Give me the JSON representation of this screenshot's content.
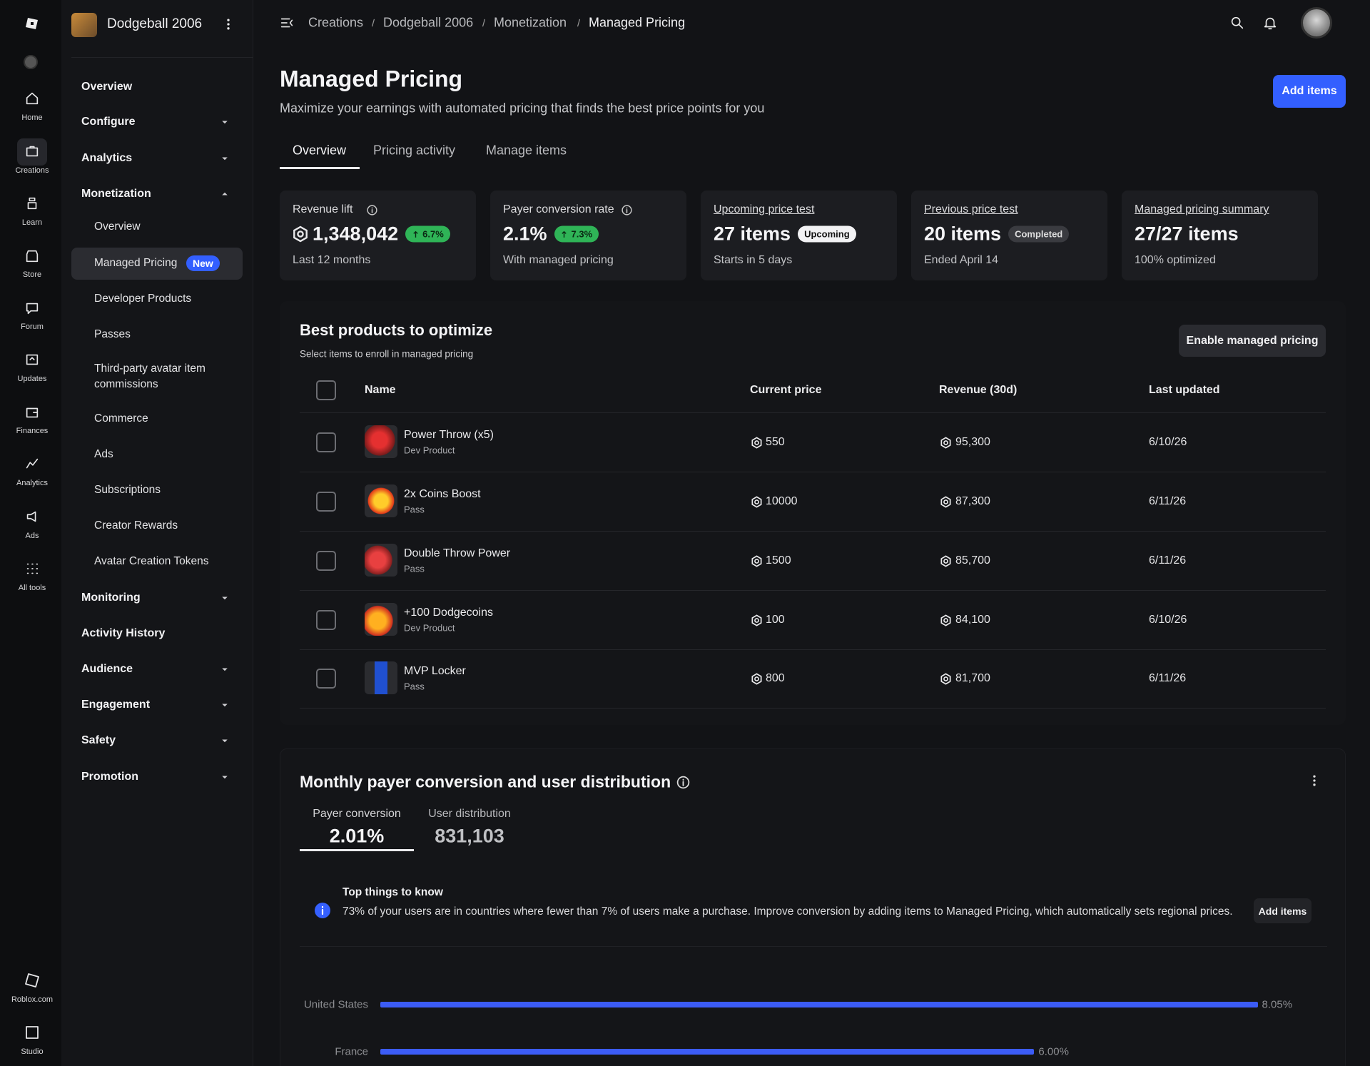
{
  "rail": [
    "Home",
    "Creations",
    "Learn",
    "Store",
    "Forum",
    "Updates",
    "Finances",
    "Analytics",
    "Ads",
    "All tools",
    "Roblox.com",
    "Studio"
  ],
  "sidebar": {
    "experience": "Dodgeball 2006",
    "items": [
      "Overview",
      "Configure",
      "Analytics",
      "Monetization",
      "Overview",
      "Managed Pricing",
      "Developer Products",
      "Passes",
      "Third-party avatar item commissions",
      "Commerce",
      "Ads",
      "Subscriptions",
      "Creator Rewards",
      "Avatar Creation Tokens",
      "Monitoring",
      "Activity History",
      "Audience",
      "Engagement",
      "Safety",
      "Promotion"
    ],
    "badge": "New"
  },
  "breadcrumb": [
    "Creations",
    "Dodgeball 2006",
    "Monetization",
    "Managed Pricing"
  ],
  "header": {
    "title": "Managed Pricing",
    "subtitle": "Maximize your earnings with automated pricing that finds the best price points for you",
    "button": "Add items"
  },
  "tabs": [
    "Overview",
    "Pricing activity",
    "Manage items"
  ],
  "stats": [
    {
      "label": "Revenue lift",
      "value": "1,348,042",
      "badge": "6.7%",
      "note": "Last 12 months"
    },
    {
      "label": "Payer conversion rate",
      "value": "2.1%",
      "badge": "7.3%",
      "note": "With managed pricing"
    },
    {
      "label": "Upcoming price test",
      "value": "27 items",
      "badge": "Upcoming",
      "note": "Starts in 5 days"
    },
    {
      "label": "Previous price test",
      "value": "20 items",
      "badge": "Completed",
      "note": "Ended April 14"
    },
    {
      "label": "Managed pricing summary",
      "value": "27/27 items",
      "note": "100% optimized"
    }
  ],
  "products": {
    "title": "Best products to optimize",
    "subtitle": "Select items to enroll in managed pricing",
    "button": "Enable managed pricing",
    "columns": [
      "Name",
      "Current price",
      "Revenue (30d)",
      "Last updated"
    ],
    "rows": [
      {
        "name": "Power Throw (x5)",
        "type": "Dev Product",
        "price": "550",
        "revenue": "95,300",
        "updated": "6/10/26"
      },
      {
        "name": "2x Coins Boost",
        "type": "Pass",
        "price": "10000",
        "revenue": "87,300",
        "updated": "6/11/26"
      },
      {
        "name": "Double Throw Power",
        "type": "Pass",
        "price": "1500",
        "revenue": "85,700",
        "updated": "6/11/26"
      },
      {
        "name": "+100 Dodgecoins",
        "type": "Dev Product",
        "price": "100",
        "revenue": "84,100",
        "updated": "6/10/26"
      },
      {
        "name": "MVP Locker",
        "type": "Pass",
        "price": "800",
        "revenue": "81,700",
        "updated": "6/11/26"
      }
    ]
  },
  "conversion": {
    "title": "Monthly payer conversion and user distribution",
    "metrics": [
      {
        "label": "Payer conversion",
        "value": "2.01%"
      },
      {
        "label": "User distribution",
        "value": "831,103"
      }
    ],
    "info": {
      "title": "Top things to know",
      "text": "73% of your users are in countries where fewer than 7% of users make a purchase. Improve conversion by adding items to Managed Pricing, which automatically sets regional prices.",
      "button": "Add items"
    }
  },
  "chart_data": {
    "type": "bar",
    "orientation": "horizontal",
    "categories": [
      "United States",
      "France"
    ],
    "values": [
      8.05,
      6.0
    ],
    "value_labels": [
      "8.05%",
      "6.00%"
    ],
    "xlim": [
      0,
      8.4
    ],
    "color": "#3c5cf6"
  }
}
